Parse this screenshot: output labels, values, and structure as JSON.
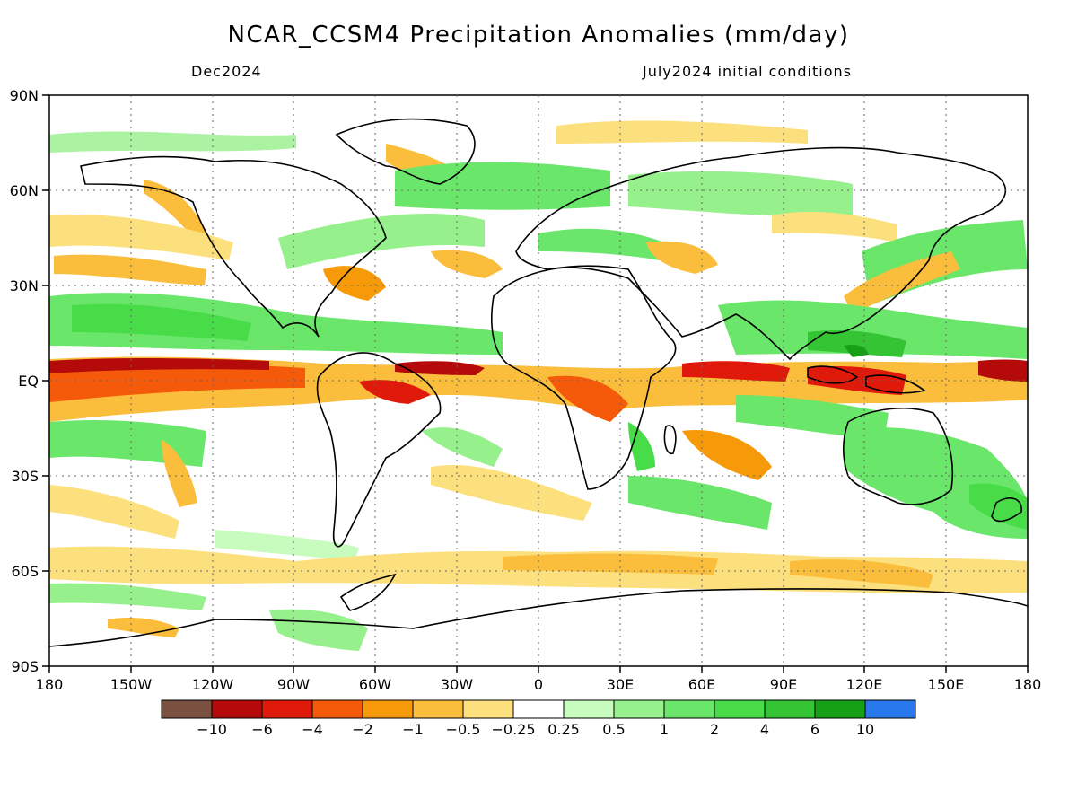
{
  "title": "NCAR_CCSM4 Precipitation Anomalies (mm/day)",
  "valid_month": "Dec2024",
  "init_label": "July2024 initial conditions",
  "axes": {
    "lat_labels": [
      "90N",
      "60N",
      "30N",
      "EQ",
      "30S",
      "60S",
      "90S"
    ],
    "lon_labels": [
      "180",
      "150W",
      "120W",
      "90W",
      "60W",
      "30W",
      "0",
      "30E",
      "60E",
      "90E",
      "120E",
      "150E",
      "180"
    ]
  },
  "colorbar": {
    "colors": [
      "#7a5040",
      "#b50a0a",
      "#e01a0a",
      "#f55a0a",
      "#f79a0a",
      "#fbbd3c",
      "#fde07e",
      "#ffffff",
      "#c8fcbe",
      "#96f08c",
      "#6ae66a",
      "#48dc48",
      "#34c434",
      "#16a016",
      "#2a78ee"
    ],
    "labels": [
      "−10",
      "−6",
      "−4",
      "−2",
      "−1",
      "−0.5",
      "−0.25",
      "0.25",
      "0.5",
      "1",
      "2",
      "4",
      "6",
      "10"
    ]
  }
}
